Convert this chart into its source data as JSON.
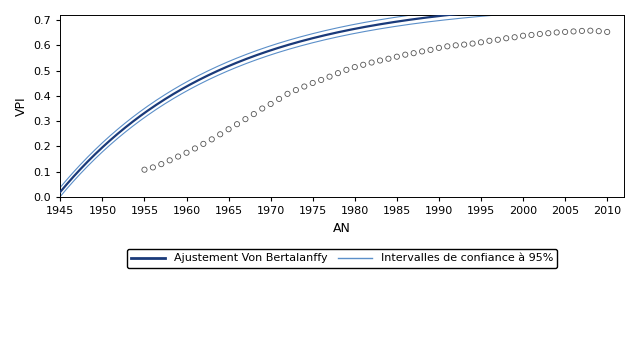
{
  "title": "",
  "xlabel": "AN",
  "ylabel": "VPI",
  "xlim": [
    1945,
    2012
  ],
  "ylim": [
    0.0,
    0.72
  ],
  "xticks": [
    1945,
    1950,
    1955,
    1960,
    1965,
    1970,
    1975,
    1980,
    1985,
    1990,
    1995,
    2000,
    2005,
    2010
  ],
  "yticks": [
    0.0,
    0.1,
    0.2,
    0.3,
    0.4,
    0.5,
    0.6,
    0.7
  ],
  "data_points_x": [
    1955,
    1956,
    1957,
    1958,
    1959,
    1960,
    1961,
    1962,
    1963,
    1964,
    1965,
    1966,
    1967,
    1968,
    1969,
    1970,
    1971,
    1972,
    1973,
    1974,
    1975,
    1976,
    1977,
    1978,
    1979,
    1980,
    1981,
    1982,
    1983,
    1984,
    1985,
    1986,
    1987,
    1988,
    1989,
    1990,
    1991,
    1992,
    1993,
    1994,
    1995,
    1996,
    1997,
    1998,
    1999,
    2000,
    2001,
    2002,
    2003,
    2004,
    2005,
    2006,
    2007,
    2008,
    2009,
    2010
  ],
  "data_points_y": [
    0.108,
    0.117,
    0.13,
    0.145,
    0.16,
    0.175,
    0.192,
    0.21,
    0.228,
    0.248,
    0.268,
    0.288,
    0.308,
    0.328,
    0.35,
    0.368,
    0.388,
    0.408,
    0.423,
    0.437,
    0.451,
    0.463,
    0.476,
    0.49,
    0.503,
    0.514,
    0.523,
    0.532,
    0.54,
    0.547,
    0.555,
    0.563,
    0.569,
    0.576,
    0.582,
    0.59,
    0.596,
    0.6,
    0.603,
    0.607,
    0.612,
    0.618,
    0.622,
    0.628,
    0.632,
    0.638,
    0.641,
    0.645,
    0.648,
    0.651,
    0.653,
    0.655,
    0.657,
    0.658,
    0.656,
    0.653
  ],
  "fit_color": "#1a3a7a",
  "ci_color": "#5b8fc9",
  "data_color": "none",
  "data_edge_color": "#555555",
  "background_color": "#ffffff",
  "legend_label_fit": "Ajustement Von Bertalanffy",
  "legend_label_ci": "Intervalles de confiance à 95%",
  "vb_L_inf": 0.79,
  "vb_k": 0.052,
  "vb_t0": 1944.5
}
